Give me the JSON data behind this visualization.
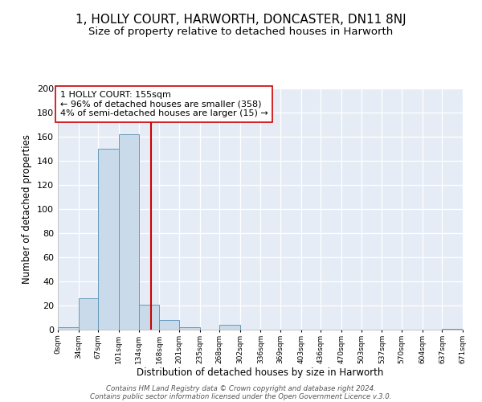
{
  "title": "1, HOLLY COURT, HARWORTH, DONCASTER, DN11 8NJ",
  "subtitle": "Size of property relative to detached houses in Harworth",
  "xlabel": "Distribution of detached houses by size in Harworth",
  "ylabel": "Number of detached properties",
  "bar_color": "#c9daea",
  "bar_edge_color": "#6699bb",
  "background_color": "#e6ecf5",
  "grid_color": "#d0d8e8",
  "bin_edges": [
    0,
    34,
    67,
    101,
    134,
    168,
    201,
    235,
    268,
    302,
    336,
    369,
    403,
    436,
    470,
    503,
    537,
    570,
    604,
    637,
    671
  ],
  "bin_counts": [
    2,
    26,
    150,
    162,
    21,
    8,
    2,
    0,
    4,
    0,
    0,
    0,
    0,
    0,
    0,
    0,
    0,
    0,
    0,
    1
  ],
  "tick_labels": [
    "0sqm",
    "34sqm",
    "67sqm",
    "101sqm",
    "134sqm",
    "168sqm",
    "201sqm",
    "235sqm",
    "268sqm",
    "302sqm",
    "336sqm",
    "369sqm",
    "403sqm",
    "436sqm",
    "470sqm",
    "503sqm",
    "537sqm",
    "570sqm",
    "604sqm",
    "637sqm",
    "671sqm"
  ],
  "ylim": [
    0,
    200
  ],
  "yticks": [
    0,
    20,
    40,
    60,
    80,
    100,
    120,
    140,
    160,
    180,
    200
  ],
  "property_value": 155,
  "vline_color": "#cc0000",
  "annotation_line1": "1 HOLLY COURT: 155sqm",
  "annotation_line2": "← 96% of detached houses are smaller (358)",
  "annotation_line3": "4% of semi-detached houses are larger (15) →",
  "annotation_box_edge": "#cc0000",
  "annotation_fontsize": 8,
  "footer_line1": "Contains HM Land Registry data © Crown copyright and database right 2024.",
  "footer_line2": "Contains public sector information licensed under the Open Government Licence v.3.0.",
  "title_fontsize": 11,
  "subtitle_fontsize": 9.5
}
